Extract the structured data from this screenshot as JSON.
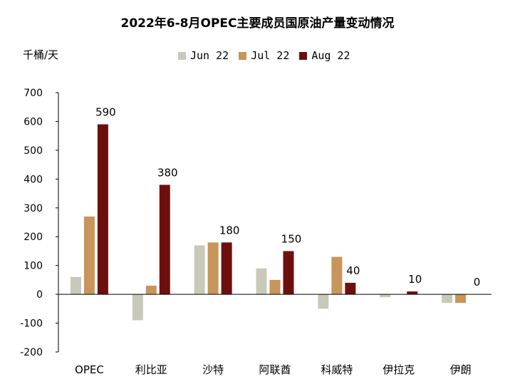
{
  "chart_data": {
    "type": "bar",
    "title": "2022年6-8月OPEC主要成员国原油产量变动情况",
    "ylabel": "千桶/天",
    "xlabel": "",
    "categories": [
      "OPEC",
      "利比亚",
      "沙特",
      "阿联酋",
      "科威特",
      "伊拉克",
      "伊朗"
    ],
    "series": [
      {
        "name": "Jun 22",
        "color": "#c9c9b9",
        "values": [
          60,
          -90,
          170,
          90,
          -50,
          -10,
          -30
        ]
      },
      {
        "name": "Jul 22",
        "color": "#c8955a",
        "values": [
          270,
          30,
          180,
          50,
          130,
          0,
          -30
        ]
      },
      {
        "name": "Aug 22",
        "color": "#6e0f0f",
        "values": [
          590,
          380,
          180,
          150,
          40,
          10,
          0
        ]
      }
    ],
    "data_labels_series": "Aug 22",
    "ylim": [
      -200,
      700
    ],
    "yticks": [
      -200,
      -100,
      0,
      100,
      200,
      300,
      400,
      500,
      600,
      700
    ],
    "ytick_labels": [
      "-200",
      "-100",
      "0",
      "100",
      "200",
      "300",
      "400",
      "500",
      "600",
      "700"
    ],
    "legend_position": "top-center",
    "grid": false
  }
}
